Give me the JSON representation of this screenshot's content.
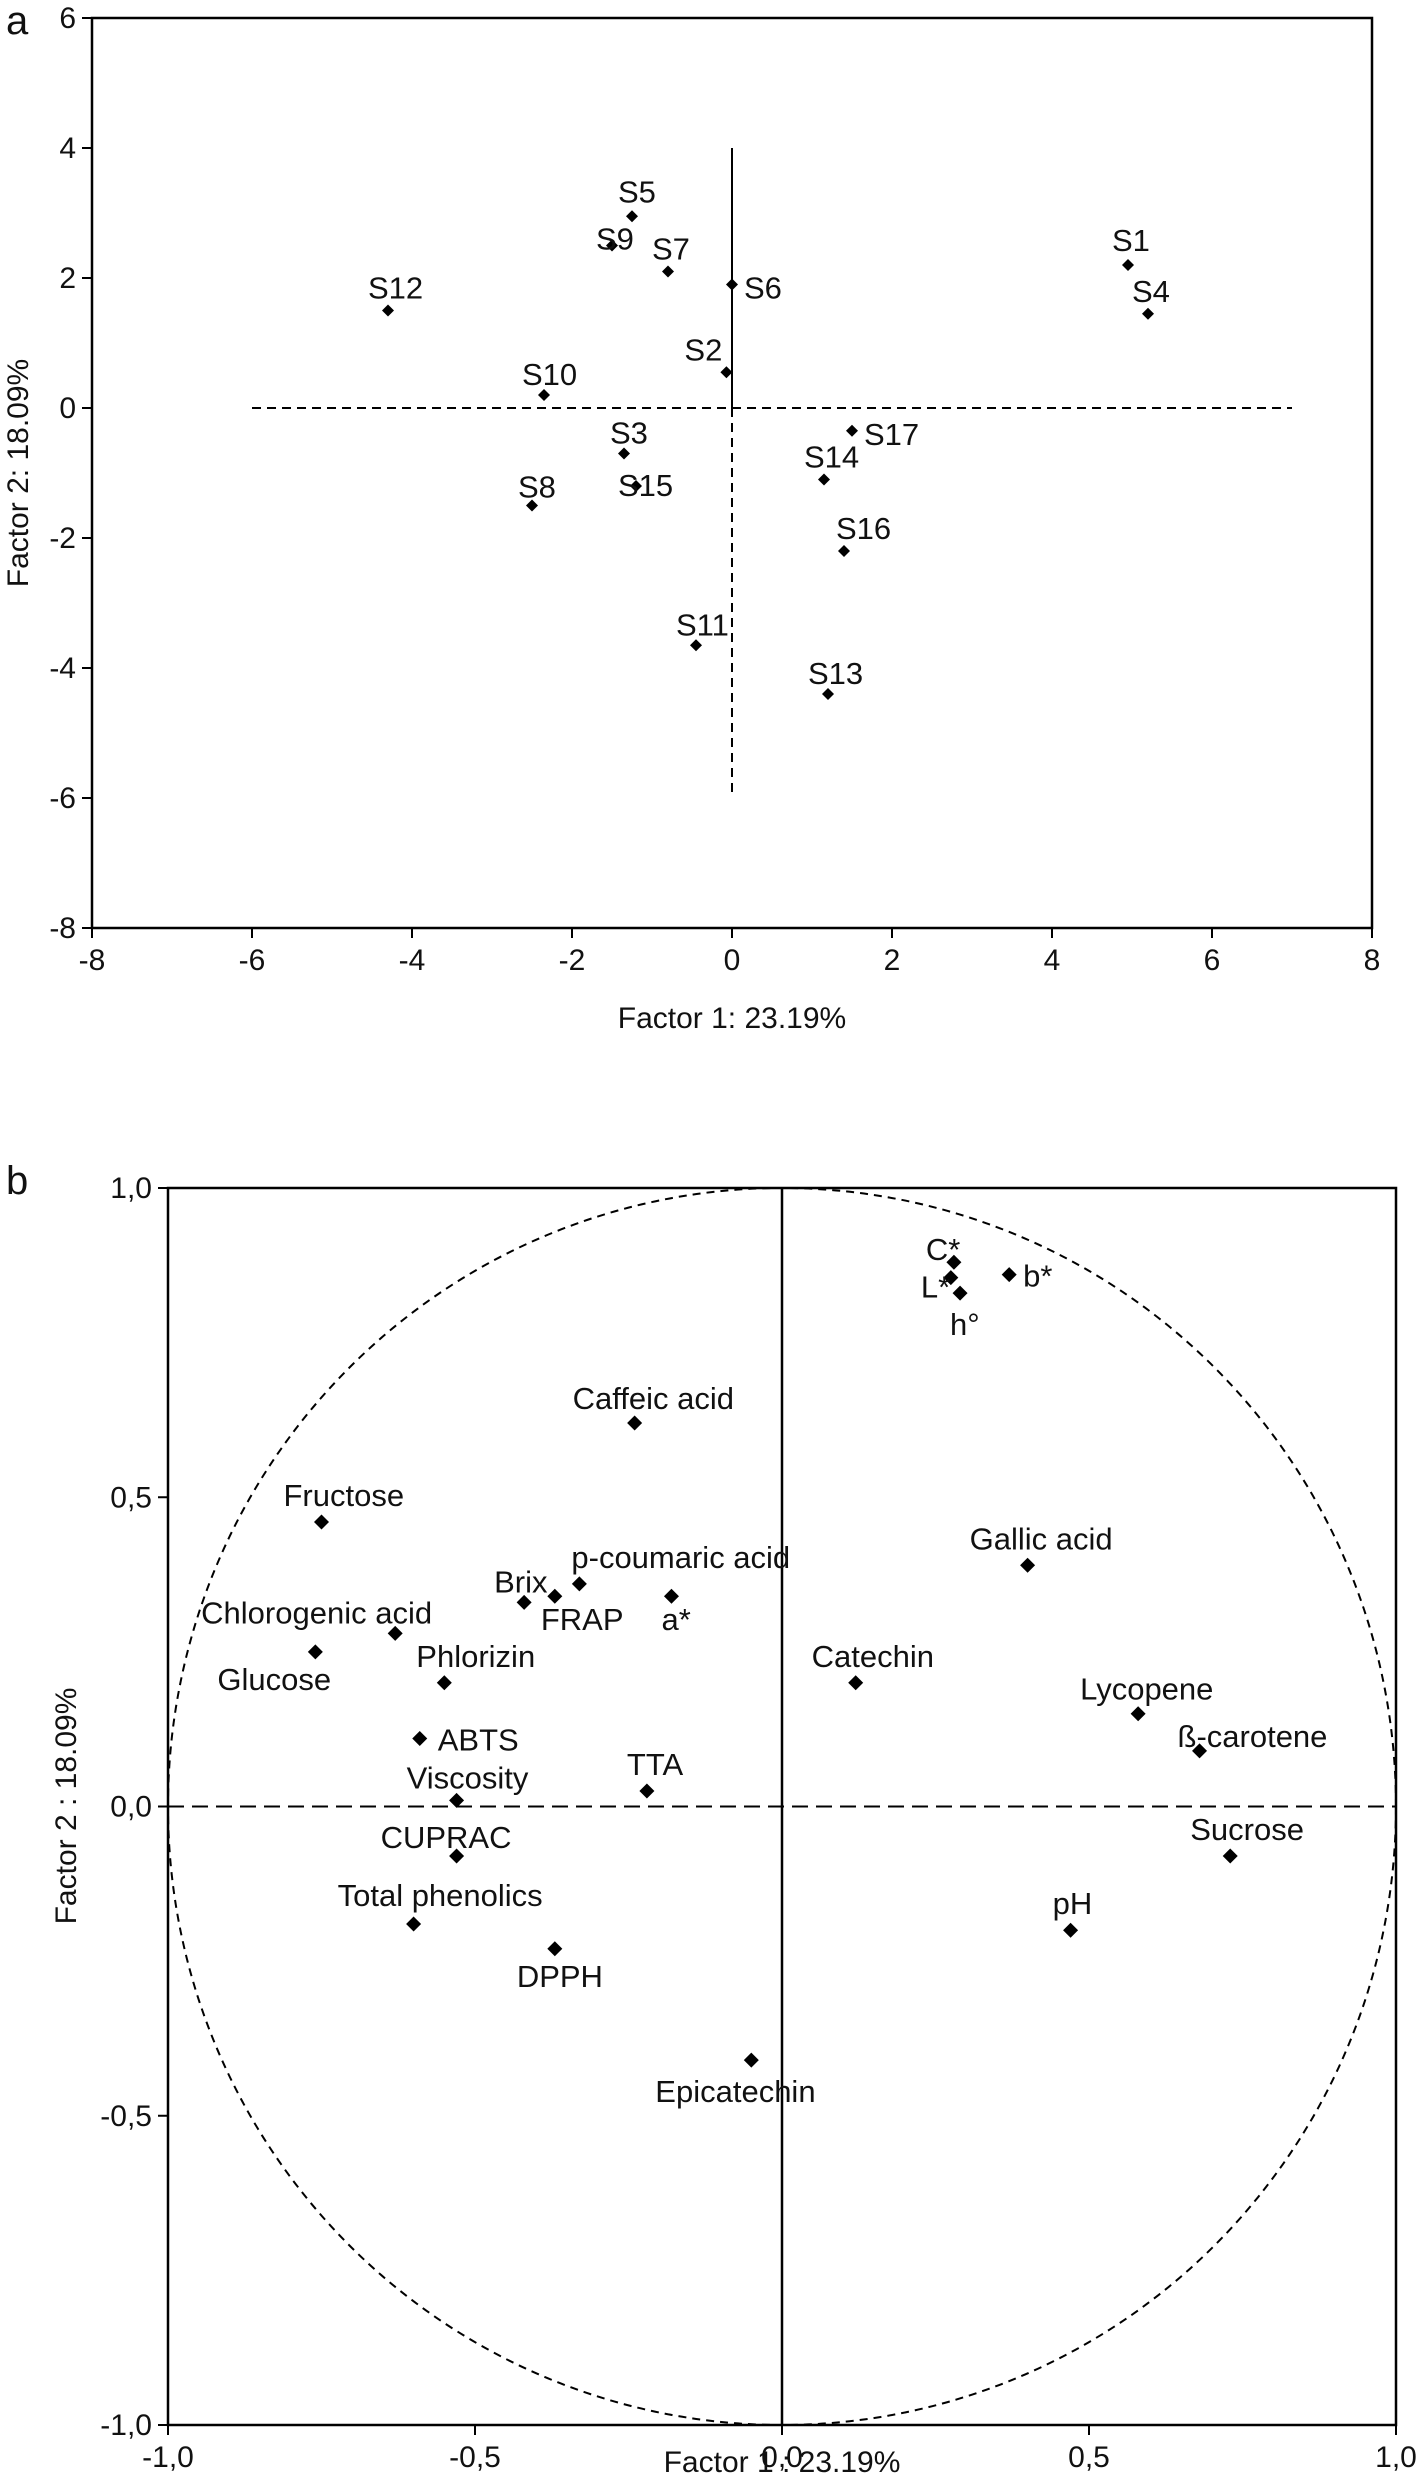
{
  "chart_data": [
    {
      "panel": "a",
      "type": "scatter",
      "xlabel": "Factor 1: 23.19%",
      "ylabel": "Factor 2: 18.09%",
      "xlim": [
        -8,
        8
      ],
      "ylim": [
        -8,
        6
      ],
      "xticks": [
        -8,
        -6,
        -4,
        -2,
        0,
        2,
        4,
        6,
        8
      ],
      "yticks": [
        -8,
        -6,
        -4,
        -2,
        0,
        2,
        4,
        6
      ],
      "tick_labels_x": [
        "-8",
        "-6",
        "-4",
        "-2",
        "0",
        "2",
        "4",
        "6",
        "8"
      ],
      "tick_labels_y": [
        "-8",
        "-6",
        "-4",
        "-2",
        "0",
        "2",
        "4",
        "6"
      ],
      "reference_lines": {
        "horizontal_x_range": [
          -6,
          7
        ],
        "vertical_y_range": [
          -6,
          4
        ]
      },
      "points": [
        {
          "label": "S1",
          "x": 4.95,
          "y": 2.2
        },
        {
          "label": "S2",
          "x": -0.07,
          "y": 0.55
        },
        {
          "label": "S3",
          "x": -1.35,
          "y": -0.7
        },
        {
          "label": "S4",
          "x": 5.2,
          "y": 1.45
        },
        {
          "label": "S5",
          "x": -1.25,
          "y": 2.95
        },
        {
          "label": "S6",
          "x": 0.0,
          "y": 1.9
        },
        {
          "label": "S7",
          "x": -0.8,
          "y": 2.1
        },
        {
          "label": "S8",
          "x": -2.5,
          "y": -1.5
        },
        {
          "label": "S9",
          "x": -1.5,
          "y": 2.5
        },
        {
          "label": "S10",
          "x": -2.35,
          "y": 0.2
        },
        {
          "label": "S11",
          "x": -0.45,
          "y": -3.65
        },
        {
          "label": "S12",
          "x": -4.3,
          "y": 1.5
        },
        {
          "label": "S13",
          "x": 1.2,
          "y": -4.4
        },
        {
          "label": "S14",
          "x": 1.15,
          "y": -1.1
        },
        {
          "label": "S15",
          "x": -1.2,
          "y": -1.2
        },
        {
          "label": "S16",
          "x": 1.4,
          "y": -2.2
        },
        {
          "label": "S17",
          "x": 1.5,
          "y": -0.35
        }
      ]
    },
    {
      "panel": "b",
      "type": "scatter",
      "xlabel": "Factor 1 : 23.19%",
      "ylabel": "Factor 2 : 18.09%",
      "xlim": [
        -1.0,
        1.0
      ],
      "ylim": [
        -1.0,
        1.0
      ],
      "xticks": [
        -1.0,
        -0.5,
        0.0,
        0.5,
        1.0
      ],
      "yticks": [
        -1.0,
        -0.5,
        0.0,
        0.5,
        1.0
      ],
      "tick_labels_x": [
        "-1,0",
        "-0,5",
        "0,0",
        "0,5",
        "1,0"
      ],
      "tick_labels_y": [
        "-1,0",
        "-0,5",
        "0,0",
        "0,5",
        "1,0"
      ],
      "unit_circle": true,
      "points": [
        {
          "label": "C*",
          "x": 0.28,
          "y": 0.88
        },
        {
          "label": "b*",
          "x": 0.37,
          "y": 0.86
        },
        {
          "label": "L*",
          "x": 0.275,
          "y": 0.855
        },
        {
          "label": "h°",
          "x": 0.29,
          "y": 0.83
        },
        {
          "label": "Caffeic acid",
          "x": -0.24,
          "y": 0.62
        },
        {
          "label": "Fructose",
          "x": -0.75,
          "y": 0.46
        },
        {
          "label": "Gallic acid",
          "x": 0.4,
          "y": 0.39
        },
        {
          "label": "Brix",
          "x": -0.42,
          "y": 0.33
        },
        {
          "label": "p-coumaric acid",
          "x": -0.33,
          "y": 0.36
        },
        {
          "label": "FRAP",
          "x": -0.37,
          "y": 0.34
        },
        {
          "label": "a*",
          "x": -0.18,
          "y": 0.34
        },
        {
          "label": "Chlorogenic acid",
          "x": -0.63,
          "y": 0.28
        },
        {
          "label": "Glucose",
          "x": -0.76,
          "y": 0.25
        },
        {
          "label": "Phlorizin",
          "x": -0.55,
          "y": 0.2
        },
        {
          "label": "Catechin",
          "x": 0.12,
          "y": 0.2
        },
        {
          "label": "Lycopene",
          "x": 0.58,
          "y": 0.15
        },
        {
          "label": "ß-carotene",
          "x": 0.68,
          "y": 0.09
        },
        {
          "label": "ABTS",
          "x": -0.59,
          "y": 0.11
        },
        {
          "label": "Viscosity",
          "x": -0.53,
          "y": 0.01
        },
        {
          "label": "TTA",
          "x": -0.22,
          "y": 0.025
        },
        {
          "label": "CUPRAC",
          "x": -0.53,
          "y": -0.08
        },
        {
          "label": "Sucrose",
          "x": 0.73,
          "y": -0.08
        },
        {
          "label": "Total phenolics",
          "x": -0.6,
          "y": -0.19
        },
        {
          "label": "pH",
          "x": 0.47,
          "y": -0.2
        },
        {
          "label": "DPPH",
          "x": -0.37,
          "y": -0.23
        },
        {
          "label": "Epicatechin",
          "x": -0.05,
          "y": -0.41
        }
      ]
    }
  ],
  "panel_letters": [
    "a",
    "b"
  ]
}
